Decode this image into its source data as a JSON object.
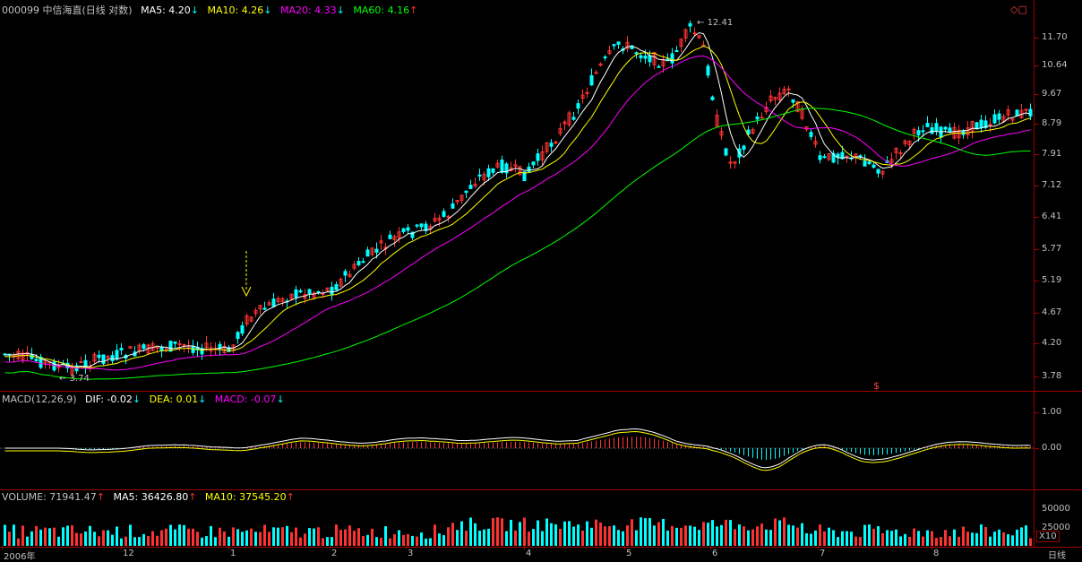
{
  "header": {
    "title": "000099 中信海直(日线 对数)",
    "ma5_label": "MA5: 4.20",
    "ma10_label": "MA10: 4.26",
    "ma20_label": "MA20: 4.33",
    "ma60_label": "MA60: 4.16",
    "ma5_arrow": "↓",
    "ma10_arrow": "↓",
    "ma20_arrow": "↓",
    "ma60_arrow": "↑"
  },
  "macd_header": {
    "title": "MACD(12,26,9)",
    "dif": "DIF: -0.02",
    "dea": "DEA: 0.01",
    "macd": "MACD: -0.07",
    "dif_arrow": "↓",
    "dea_arrow": "↓",
    "macd_arrow": "↓"
  },
  "volume_header": {
    "volume": "VOLUME: 71941.47",
    "ma5": "MA5: 36426.80",
    "ma10": "MA10: 37545.20",
    "volume_arrow": "↑",
    "ma5_arrow": "↑",
    "ma10_arrow": "↑"
  },
  "price_axis": [
    "11.70",
    "10.64",
    "9.67",
    "8.79",
    "7.91",
    "7.12",
    "6.41",
    "5.77",
    "5.19",
    "4.67",
    "4.20",
    "3.78"
  ],
  "macd_axis": [
    "1.00",
    "0.00"
  ],
  "volume_axis": [
    "50000",
    "25000"
  ],
  "x_axis": [
    "2006年",
    "12",
    "1",
    "2",
    "3",
    "4",
    "5",
    "6",
    "7",
    "8"
  ],
  "annotations": {
    "high": "12.41",
    "low": "3.74",
    "right_label": "日线",
    "scale_label": "X10"
  },
  "colors": {
    "up": "#ff3232",
    "down": "#00ffff",
    "ma5": "#ffffff",
    "ma10": "#ffff00",
    "ma20": "#ff00ff",
    "ma60": "#00ff00"
  }
}
